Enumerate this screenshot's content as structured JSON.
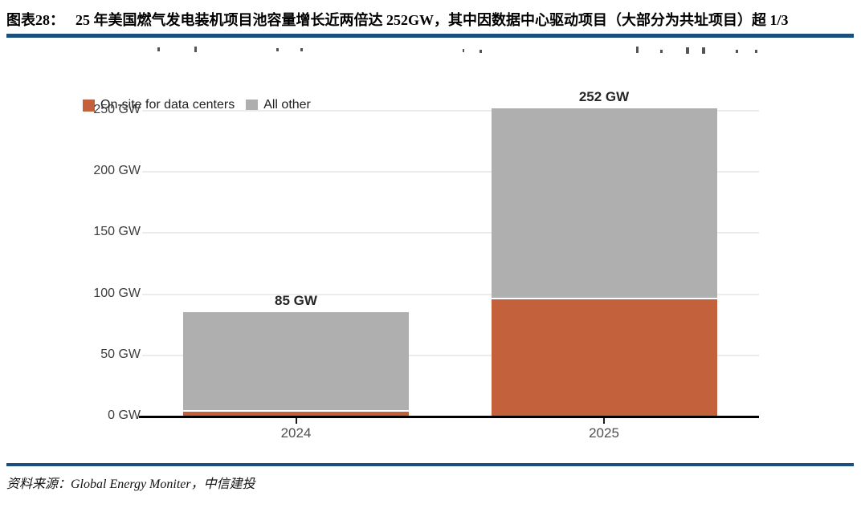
{
  "header": {
    "label": "图表28：",
    "title": "25 年美国燃气发电装机项目池容量增长近两倍达 252GW，其中因数据中心驱动项目（大部分为共址项目）超 1/3"
  },
  "chart_data": {
    "type": "bar",
    "stacked": true,
    "categories": [
      "2024",
      "2025"
    ],
    "series": [
      {
        "name": "On-site for data centers",
        "color": "#c2613b",
        "values": [
          4,
          96
        ]
      },
      {
        "name": "All other",
        "color": "#b0afaf",
        "values": [
          81,
          156
        ]
      }
    ],
    "totals": [
      85,
      252
    ],
    "total_labels": [
      "85 GW",
      "252 GW"
    ],
    "y_ticks": [
      0,
      50,
      100,
      150,
      200,
      250
    ],
    "y_tick_labels": [
      "0 GW",
      "50 GW",
      "100 GW",
      "150 GW",
      "200 GW",
      "250 GW"
    ],
    "ylim": [
      0,
      260
    ],
    "grid": true,
    "legend_position": "top-left",
    "xlabel": "",
    "ylabel": ""
  },
  "source": {
    "text": "资料来源：Global Energy Moniter，中信建投"
  },
  "colors": {
    "rule": "#1b4f7e",
    "axis": "#000000",
    "grid": "#ebebeb",
    "orange": "#c2613b",
    "gray": "#b0afaf"
  }
}
